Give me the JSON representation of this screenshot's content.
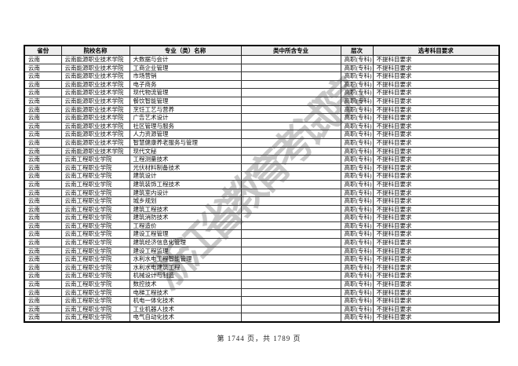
{
  "page": {
    "watermark": "浙江省教育考试院",
    "footer": "第 1744 页，共 1789 页"
  },
  "table": {
    "headers": [
      "省份",
      "院校名称",
      "专业（类）名称",
      "类中所含专业",
      "层次",
      "选考科目要求"
    ],
    "rows": [
      {
        "province": "云南",
        "school": "云南能源职业技术学院",
        "major": "大数据与会计",
        "included": "",
        "level": "高职(专科)",
        "requirement": "不提科目要求"
      },
      {
        "province": "云南",
        "school": "云南能源职业技术学院",
        "major": "工商企业管理",
        "included": "",
        "level": "高职(专科)",
        "requirement": "不提科目要求"
      },
      {
        "province": "云南",
        "school": "云南能源职业技术学院",
        "major": "市场营销",
        "included": "",
        "level": "高职(专科)",
        "requirement": "不提科目要求"
      },
      {
        "province": "云南",
        "school": "云南能源职业技术学院",
        "major": "电子商务",
        "included": "",
        "level": "高职(专科)",
        "requirement": "不提科目要求"
      },
      {
        "province": "云南",
        "school": "云南能源职业技术学院",
        "major": "现代物流管理",
        "included": "",
        "level": "高职(专科)",
        "requirement": "不提科目要求"
      },
      {
        "province": "云南",
        "school": "云南能源职业技术学院",
        "major": "餐饮智能管理",
        "included": "",
        "level": "高职(专科)",
        "requirement": "不提科目要求"
      },
      {
        "province": "云南",
        "school": "云南能源职业技术学院",
        "major": "烹饪工艺与营养",
        "included": "",
        "level": "高职(专科)",
        "requirement": "不提科目要求"
      },
      {
        "province": "云南",
        "school": "云南能源职业技术学院",
        "major": "广告艺术设计",
        "included": "",
        "level": "高职(专科)",
        "requirement": "不提科目要求"
      },
      {
        "province": "云南",
        "school": "云南能源职业技术学院",
        "major": "社区管理与服务",
        "included": "",
        "level": "高职(专科)",
        "requirement": "不提科目要求"
      },
      {
        "province": "云南",
        "school": "云南能源职业技术学院",
        "major": "人力资源管理",
        "included": "",
        "level": "高职(专科)",
        "requirement": "不提科目要求"
      },
      {
        "province": "云南",
        "school": "云南能源职业技术学院",
        "major": "智慧健康养老服务与管理",
        "included": "",
        "level": "高职(专科)",
        "requirement": "不提科目要求"
      },
      {
        "province": "云南",
        "school": "云南能源职业技术学院",
        "major": "现代文秘",
        "included": "",
        "level": "高职(专科)",
        "requirement": "不提科目要求"
      },
      {
        "province": "云南",
        "school": "云南工程职业学院",
        "major": "工程测量技术",
        "included": "",
        "level": "高职(专科)",
        "requirement": "不提科目要求"
      },
      {
        "province": "云南",
        "school": "云南工程职业学院",
        "major": "光伏材料制备技术",
        "included": "",
        "level": "高职(专科)",
        "requirement": "不提科目要求"
      },
      {
        "province": "云南",
        "school": "云南工程职业学院",
        "major": "建筑设计",
        "included": "",
        "level": "高职(专科)",
        "requirement": "不提科目要求"
      },
      {
        "province": "云南",
        "school": "云南工程职业学院",
        "major": "建筑装饰工程技术",
        "included": "",
        "level": "高职(专科)",
        "requirement": "不提科目要求"
      },
      {
        "province": "云南",
        "school": "云南工程职业学院",
        "major": "建筑室内设计",
        "included": "",
        "level": "高职(专科)",
        "requirement": "不提科目要求"
      },
      {
        "province": "云南",
        "school": "云南工程职业学院",
        "major": "城乡规划",
        "included": "",
        "level": "高职(专科)",
        "requirement": "不提科目要求"
      },
      {
        "province": "云南",
        "school": "云南工程职业学院",
        "major": "建筑工程技术",
        "included": "",
        "level": "高职(专科)",
        "requirement": "不提科目要求"
      },
      {
        "province": "云南",
        "school": "云南工程职业学院",
        "major": "建筑消防技术",
        "included": "",
        "level": "高职(专科)",
        "requirement": "不提科目要求"
      },
      {
        "province": "云南",
        "school": "云南工程职业学院",
        "major": "工程造价",
        "included": "",
        "level": "高职(专科)",
        "requirement": "不提科目要求"
      },
      {
        "province": "云南",
        "school": "云南工程职业学院",
        "major": "建设工程管理",
        "included": "",
        "level": "高职(专科)",
        "requirement": "不提科目要求"
      },
      {
        "province": "云南",
        "school": "云南工程职业学院",
        "major": "建筑经济信息化管理",
        "included": "",
        "level": "高职(专科)",
        "requirement": "不提科目要求"
      },
      {
        "province": "云南",
        "school": "云南工程职业学院",
        "major": "建设工程监理",
        "included": "",
        "level": "高职(专科)",
        "requirement": "不提科目要求"
      },
      {
        "province": "云南",
        "school": "云南工程职业学院",
        "major": "水利水电工程智能管理",
        "included": "",
        "level": "高职(专科)",
        "requirement": "不提科目要求"
      },
      {
        "province": "云南",
        "school": "云南工程职业学院",
        "major": "水利水电建筑工程",
        "included": "",
        "level": "高职(专科)",
        "requirement": "不提科目要求"
      },
      {
        "province": "云南",
        "school": "云南工程职业学院",
        "major": "机械设计与制造",
        "included": "",
        "level": "高职(专科)",
        "requirement": "不提科目要求"
      },
      {
        "province": "云南",
        "school": "云南工程职业学院",
        "major": "数控技术",
        "included": "",
        "level": "高职(专科)",
        "requirement": "不提科目要求"
      },
      {
        "province": "云南",
        "school": "云南工程职业学院",
        "major": "电梯工程技术",
        "included": "",
        "level": "高职(专科)",
        "requirement": "不提科目要求"
      },
      {
        "province": "云南",
        "school": "云南工程职业学院",
        "major": "机电一体化技术",
        "included": "",
        "level": "高职(专科)",
        "requirement": "不提科目要求"
      },
      {
        "province": "云南",
        "school": "云南工程职业学院",
        "major": "工业机器人技术",
        "included": "",
        "level": "高职(专科)",
        "requirement": "不提科目要求"
      },
      {
        "province": "云南",
        "school": "云南工程职业学院",
        "major": "电气自动化技术",
        "included": "",
        "level": "高职(专科)",
        "requirement": "不提科目要求"
      }
    ]
  }
}
